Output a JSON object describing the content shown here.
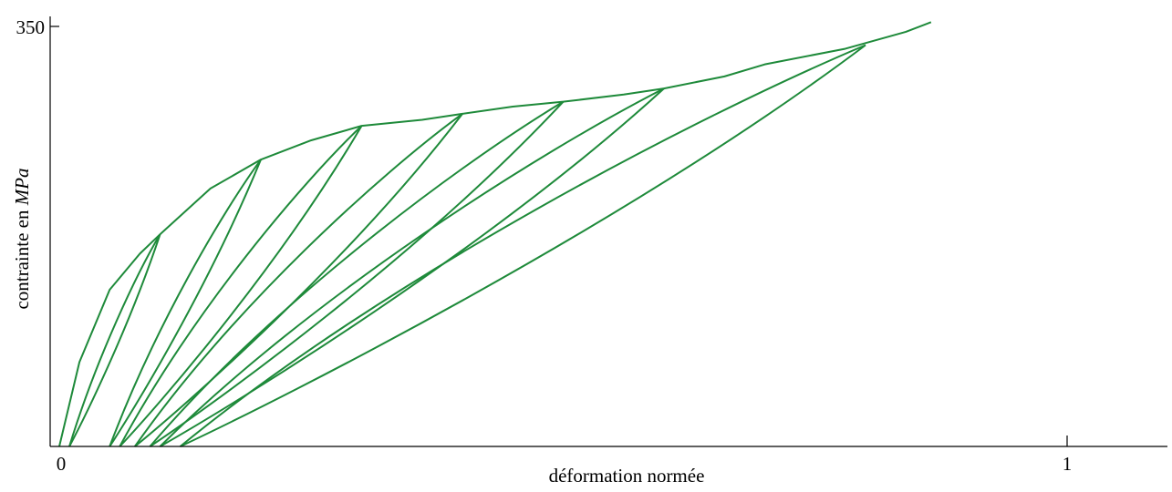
{
  "chart_data": {
    "type": "line",
    "title": "",
    "xlabel": "déformation normée",
    "ylabel_prefix": "contrainte en ",
    "ylabel_unit": "MPa",
    "xlim": [
      0,
      1.1
    ],
    "ylim": [
      0,
      350
    ],
    "x_ticks": [
      {
        "value": 0,
        "label": "0"
      },
      {
        "value": 1,
        "label": "1"
      }
    ],
    "y_ticks": [
      {
        "value": 350,
        "label": "350"
      }
    ],
    "grid": false,
    "line_color": "#1e8a3a",
    "envelope": {
      "x": [
        0.0,
        0.02,
        0.05,
        0.08,
        0.1,
        0.15,
        0.2,
        0.25,
        0.3,
        0.36,
        0.4,
        0.45,
        0.5,
        0.56,
        0.6,
        0.66,
        0.7,
        0.78,
        0.84,
        0.865
      ],
      "y": [
        0,
        70,
        130,
        160,
        176,
        214,
        238,
        254,
        266,
        271,
        276,
        282,
        286,
        292,
        297,
        307,
        317,
        330,
        344,
        352
      ]
    },
    "cycles": [
      {
        "peak_x": 0.1,
        "peak_y": 176,
        "residual_x": 0.01
      },
      {
        "peak_x": 0.2,
        "peak_y": 238,
        "residual_x": 0.05
      },
      {
        "peak_x": 0.3,
        "peak_y": 266,
        "residual_x": 0.06
      },
      {
        "peak_x": 0.4,
        "peak_y": 276,
        "residual_x": 0.075
      },
      {
        "peak_x": 0.5,
        "peak_y": 286,
        "residual_x": 0.09
      },
      {
        "peak_x": 0.6,
        "peak_y": 297,
        "residual_x": 0.1
      },
      {
        "peak_x": 0.8,
        "peak_y": 333,
        "residual_x": 0.12
      }
    ]
  }
}
